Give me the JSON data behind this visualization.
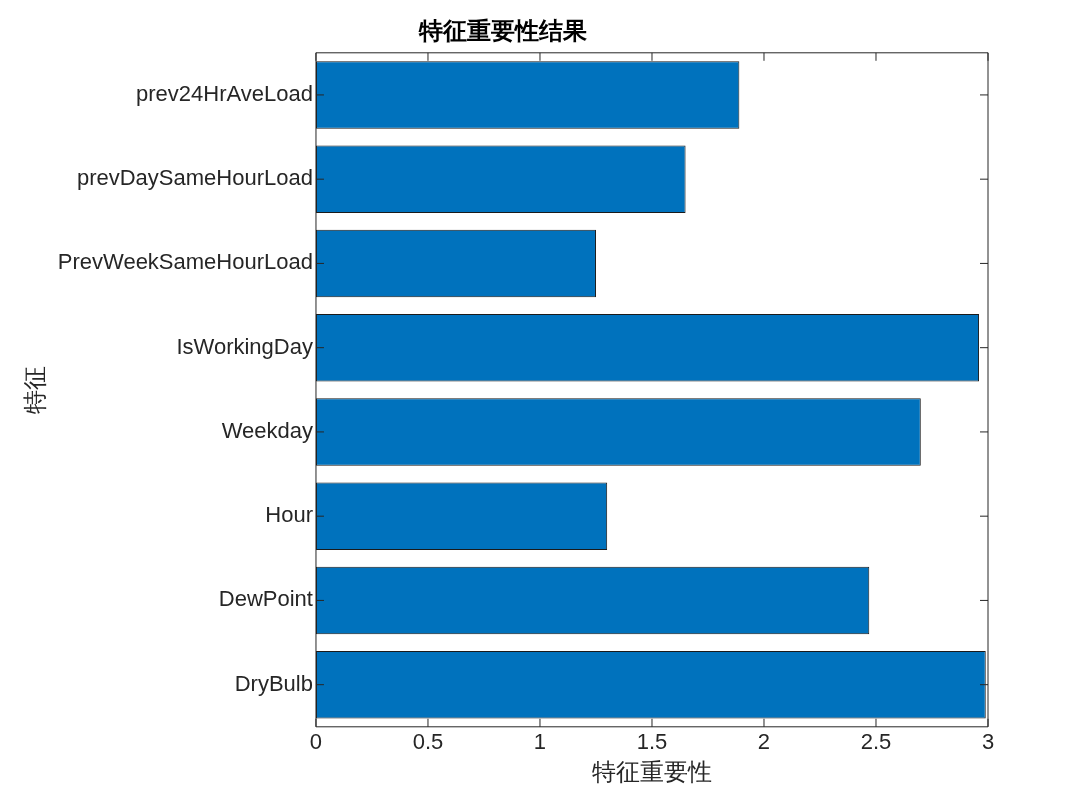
{
  "chart_data": {
    "type": "bar",
    "orientation": "horizontal",
    "title": "特征重要性结果",
    "xlabel": "特征重要性",
    "ylabel": "特征",
    "categories": [
      "prev24HrAveLoad",
      "prevDaySameHourLoad",
      "PrevWeekSameHourLoad",
      "IsWorkingDay",
      "Weekday",
      "Hour",
      "DewPoint",
      "DryBulb"
    ],
    "values": [
      1.89,
      1.65,
      1.25,
      2.96,
      2.7,
      1.3,
      2.47,
      2.99
    ],
    "color": "#0072bd",
    "xlim": [
      0,
      3
    ],
    "xticks": [
      0,
      0.5,
      1,
      1.5,
      2,
      2.5,
      3
    ],
    "grid": false,
    "legend": false
  }
}
